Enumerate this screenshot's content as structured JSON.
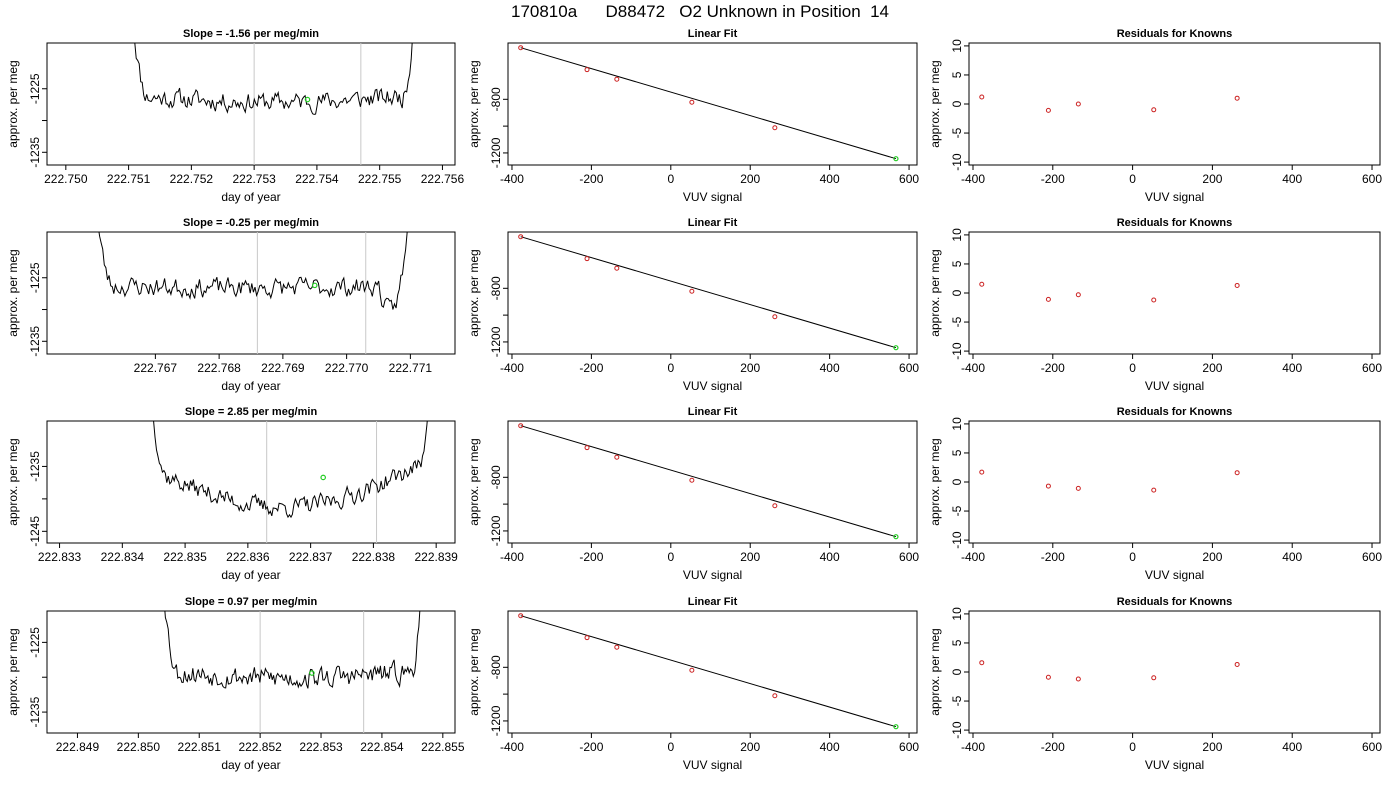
{
  "page": {
    "title": "170810a      D88472   O2 Unknown in Position  14"
  },
  "colors": {
    "trace": "#000000",
    "guide": "#c8c8c8",
    "unknown": "#22cc22",
    "known": "#cc2222",
    "fit_line": "#000000"
  },
  "chart_data": [
    {
      "type": "line",
      "panel": "time-series",
      "row": 1,
      "title": "Slope =  -1.56  per meg/min",
      "xlabel": "day of year",
      "ylabel": "approx. per meg",
      "xlim": [
        222.7497,
        222.7562
      ],
      "xticks": [
        222.75,
        222.751,
        222.752,
        222.753,
        222.754,
        222.755,
        222.756
      ],
      "xtick_labels": [
        "222.750",
        "222.751",
        "222.752",
        "222.753",
        "222.754",
        "222.755",
        "222.756"
      ],
      "ylim": [
        -1237,
        -1217.8
      ],
      "yticks": [
        -1225,
        -1230,
        -1235
      ],
      "ytick_labels": [
        "-1225",
        "",
        "-1235"
      ],
      "trace": {
        "x_start": 222.75105,
        "x_end": 222.75555,
        "y_base": -1226.3,
        "amp": 1.5,
        "bowl": 0.8,
        "points": 190,
        "seed": 11,
        "left_rise": true,
        "right_rise": true
      },
      "vlines": [
        222.753,
        222.7547
      ],
      "unknown_point": {
        "x": 222.75385,
        "y": -1226.7
      }
    },
    {
      "type": "scatter",
      "panel": "linear-fit",
      "row": 1,
      "title": "Linear Fit",
      "xlabel": "VUV signal",
      "ylabel": "approx. per meg",
      "xlim": [
        -410,
        620
      ],
      "xticks": [
        -400,
        -200,
        0,
        200,
        400,
        600
      ],
      "xtick_labels": [
        "-400",
        "-200",
        "0",
        "200",
        "400",
        "600"
      ],
      "ylim": [
        -1290,
        -380
      ],
      "yticks": [
        -800,
        -1000,
        -1200
      ],
      "ytick_labels": [
        "-800",
        "",
        "-1200"
      ],
      "knowns": [
        {
          "x": -378,
          "y": -415
        },
        {
          "x": -211,
          "y": -579
        },
        {
          "x": -136,
          "y": -650
        },
        {
          "x": 53,
          "y": -822
        },
        {
          "x": 262,
          "y": -1012
        }
      ],
      "unknown": {
        "x": 567,
        "y": -1243
      },
      "fit_line": {
        "x": [
          -378,
          567
        ],
        "y": [
          -415,
          -1243
        ]
      }
    },
    {
      "type": "scatter",
      "panel": "residuals",
      "row": 1,
      "title": "Residuals for Knowns",
      "xlabel": "VUV signal",
      "ylabel": "approx. per meg",
      "xlim": [
        -410,
        620
      ],
      "xticks": [
        -400,
        -200,
        0,
        200,
        400,
        600
      ],
      "xtick_labels": [
        "-400",
        "-200",
        "0",
        "200",
        "400",
        "600"
      ],
      "ylim": [
        -10.5,
        10.5
      ],
      "yticks": [
        10,
        5,
        0,
        -5,
        -10
      ],
      "ytick_labels": [
        "10",
        "5",
        "0",
        "-5",
        "-10"
      ],
      "residuals": [
        {
          "x": -378,
          "y": 1.2
        },
        {
          "x": -211,
          "y": -1.1
        },
        {
          "x": -136,
          "y": 0.0
        },
        {
          "x": 53,
          "y": -1.0
        },
        {
          "x": 262,
          "y": 1.0
        }
      ]
    },
    {
      "type": "line",
      "panel": "time-series",
      "row": 2,
      "title": "Slope =  -0.25  per meg/min",
      "xlabel": "day of year",
      "ylabel": "approx. per meg",
      "xlim": [
        222.7653,
        222.7717
      ],
      "xticks": [
        222.767,
        222.768,
        222.769,
        222.77,
        222.771
      ],
      "xtick_labels": [
        "222.767",
        "222.768",
        "222.769",
        "222.770",
        "222.771"
      ],
      "ylim": [
        -1237,
        -1217.8
      ],
      "yticks": [
        -1225,
        -1230,
        -1235
      ],
      "ytick_labels": [
        "-1225",
        "",
        "-1235"
      ],
      "trace": {
        "x_start": 222.76605,
        "x_end": 222.771,
        "y_base": -1226.3,
        "amp": 1.5,
        "bowl": 0.3,
        "points": 200,
        "seed": 23,
        "left_rise": true,
        "right_rise": true,
        "right_dip": true
      },
      "vlines": [
        222.7686,
        222.7703
      ],
      "unknown_point": {
        "x": 222.7695,
        "y": -1226.2
      }
    },
    {
      "type": "scatter",
      "panel": "linear-fit",
      "row": 2,
      "title": "Linear Fit",
      "xlabel": "VUV signal",
      "ylabel": "approx. per meg",
      "xlim": [
        -410,
        620
      ],
      "xticks": [
        -400,
        -200,
        0,
        200,
        400,
        600
      ],
      "xtick_labels": [
        "-400",
        "-200",
        "0",
        "200",
        "400",
        "600"
      ],
      "ylim": [
        -1290,
        -380
      ],
      "yticks": [
        -800,
        -1000,
        -1200
      ],
      "ytick_labels": [
        "-800",
        "",
        "-1200"
      ],
      "knowns": [
        {
          "x": -378,
          "y": -415
        },
        {
          "x": -211,
          "y": -579
        },
        {
          "x": -136,
          "y": -650
        },
        {
          "x": 53,
          "y": -822
        },
        {
          "x": 262,
          "y": -1012
        }
      ],
      "unknown": {
        "x": 567,
        "y": -1243
      },
      "fit_line": {
        "x": [
          -378,
          567
        ],
        "y": [
          -415,
          -1243
        ]
      }
    },
    {
      "type": "scatter",
      "panel": "residuals",
      "row": 2,
      "title": "Residuals for Knowns",
      "xlabel": "VUV signal",
      "ylabel": "approx. per meg",
      "xlim": [
        -410,
        620
      ],
      "xticks": [
        -400,
        -200,
        0,
        200,
        400,
        600
      ],
      "xtick_labels": [
        "-400",
        "-200",
        "0",
        "200",
        "400",
        "600"
      ],
      "ylim": [
        -10.5,
        10.5
      ],
      "yticks": [
        10,
        5,
        0,
        -5,
        -10
      ],
      "ytick_labels": [
        "10",
        "5",
        "0",
        "-5",
        "-10"
      ],
      "residuals": [
        {
          "x": -378,
          "y": 1.5
        },
        {
          "x": -211,
          "y": -1.1
        },
        {
          "x": -136,
          "y": -0.3
        },
        {
          "x": 53,
          "y": -1.2
        },
        {
          "x": 262,
          "y": 1.3
        }
      ]
    },
    {
      "type": "line",
      "panel": "time-series",
      "row": 3,
      "title": "Slope =  2.85  per meg/min",
      "xlabel": "day of year",
      "ylabel": "approx. per meg",
      "xlim": [
        222.8328,
        222.8393
      ],
      "xticks": [
        222.833,
        222.834,
        222.835,
        222.836,
        222.837,
        222.838,
        222.839
      ],
      "xtick_labels": [
        "222.833",
        "222.834",
        "222.835",
        "222.836",
        "222.837",
        "222.838",
        "222.839"
      ],
      "ylim": [
        -1246.8,
        -1228
      ],
      "yticks": [
        -1235,
        -1240,
        -1245
      ],
      "ytick_labels": [
        "-1235",
        "",
        "-1245"
      ],
      "trace": {
        "x_start": 222.83445,
        "x_end": 222.8389,
        "y_base": -1235.8,
        "amp": 1.4,
        "bowl": 5.5,
        "points": 190,
        "seed": 37,
        "left_rise": true,
        "right_rise": true,
        "tilt": 1.5
      },
      "vlines": [
        222.8363,
        222.83805
      ],
      "unknown_point": {
        "x": 222.8372,
        "y": -1236.7
      }
    },
    {
      "type": "scatter",
      "panel": "linear-fit",
      "row": 3,
      "title": "Linear Fit",
      "xlabel": "VUV signal",
      "ylabel": "approx. per meg",
      "xlim": [
        -410,
        620
      ],
      "xticks": [
        -400,
        -200,
        0,
        200,
        400,
        600
      ],
      "xtick_labels": [
        "-400",
        "-200",
        "0",
        "200",
        "400",
        "600"
      ],
      "ylim": [
        -1290,
        -380
      ],
      "yticks": [
        -800,
        -1000,
        -1200
      ],
      "ytick_labels": [
        "-800",
        "",
        "-1200"
      ],
      "knowns": [
        {
          "x": -378,
          "y": -415
        },
        {
          "x": -211,
          "y": -579
        },
        {
          "x": -136,
          "y": -650
        },
        {
          "x": 53,
          "y": -822
        },
        {
          "x": 262,
          "y": -1012
        }
      ],
      "unknown": {
        "x": 567,
        "y": -1243
      },
      "fit_line": {
        "x": [
          -378,
          567
        ],
        "y": [
          -415,
          -1243
        ]
      }
    },
    {
      "type": "scatter",
      "panel": "residuals",
      "row": 3,
      "title": "Residuals for Knowns",
      "xlabel": "VUV signal",
      "ylabel": "approx. per meg",
      "xlim": [
        -410,
        620
      ],
      "xticks": [
        -400,
        -200,
        0,
        200,
        400,
        600
      ],
      "xtick_labels": [
        "-400",
        "-200",
        "0",
        "200",
        "400",
        "600"
      ],
      "ylim": [
        -10.5,
        10.5
      ],
      "yticks": [
        10,
        5,
        0,
        -5,
        -10
      ],
      "ytick_labels": [
        "10",
        "5",
        "0",
        "-5",
        "-10"
      ],
      "residuals": [
        {
          "x": -378,
          "y": 1.7
        },
        {
          "x": -211,
          "y": -0.7
        },
        {
          "x": -136,
          "y": -1.1
        },
        {
          "x": 53,
          "y": -1.4
        },
        {
          "x": 262,
          "y": 1.6
        }
      ]
    },
    {
      "type": "line",
      "panel": "time-series",
      "row": 4,
      "title": "Slope =  0.97  per meg/min",
      "xlabel": "day of year",
      "ylabel": "approx. per meg",
      "xlim": [
        222.8485,
        222.8552
      ],
      "xticks": [
        222.849,
        222.85,
        222.851,
        222.852,
        222.853,
        222.854,
        222.855
      ],
      "xtick_labels": [
        "222.849",
        "222.850",
        "222.851",
        "222.852",
        "222.853",
        "222.854",
        "222.855"
      ],
      "ylim": [
        -1238,
        -1220.5
      ],
      "yticks": [
        -1225,
        -1230,
        -1235
      ],
      "ytick_labels": [
        "-1225",
        "",
        "-1235"
      ],
      "trace": {
        "x_start": 222.8504,
        "x_end": 222.85465,
        "y_base": -1229.3,
        "amp": 1.5,
        "bowl": 0.8,
        "points": 190,
        "seed": 53,
        "left_rise": true,
        "right_rise": true
      },
      "vlines": [
        222.852,
        222.8537
      ],
      "unknown_point": {
        "x": 222.85285,
        "y": -1229.4
      }
    },
    {
      "type": "scatter",
      "panel": "linear-fit",
      "row": 4,
      "title": "Linear Fit",
      "xlabel": "VUV signal",
      "ylabel": "approx. per meg",
      "xlim": [
        -410,
        620
      ],
      "xticks": [
        -400,
        -200,
        0,
        200,
        400,
        600
      ],
      "xtick_labels": [
        "-400",
        "-200",
        "0",
        "200",
        "400",
        "600"
      ],
      "ylim": [
        -1290,
        -380
      ],
      "yticks": [
        -800,
        -1000,
        -1200
      ],
      "ytick_labels": [
        "-800",
        "",
        "-1200"
      ],
      "knowns": [
        {
          "x": -378,
          "y": -415
        },
        {
          "x": -211,
          "y": -579
        },
        {
          "x": -136,
          "y": -650
        },
        {
          "x": 53,
          "y": -822
        },
        {
          "x": 262,
          "y": -1012
        }
      ],
      "unknown": {
        "x": 567,
        "y": -1243
      },
      "fit_line": {
        "x": [
          -378,
          567
        ],
        "y": [
          -415,
          -1243
        ]
      }
    },
    {
      "type": "scatter",
      "panel": "residuals",
      "row": 4,
      "title": "Residuals for Knowns",
      "xlabel": "VUV signal",
      "ylabel": "approx. per meg",
      "xlim": [
        -410,
        620
      ],
      "xticks": [
        -400,
        -200,
        0,
        200,
        400,
        600
      ],
      "xtick_labels": [
        "-400",
        "-200",
        "0",
        "200",
        "400",
        "600"
      ],
      "ylim": [
        -10.5,
        10.5
      ],
      "yticks": [
        10,
        5,
        0,
        -5,
        -10
      ],
      "ytick_labels": [
        "10",
        "5",
        "0",
        "-5",
        "-10"
      ],
      "residuals": [
        {
          "x": -378,
          "y": 1.6
        },
        {
          "x": -211,
          "y": -0.9
        },
        {
          "x": -136,
          "y": -1.2
        },
        {
          "x": 53,
          "y": -1.0
        },
        {
          "x": 262,
          "y": 1.3
        }
      ]
    }
  ]
}
